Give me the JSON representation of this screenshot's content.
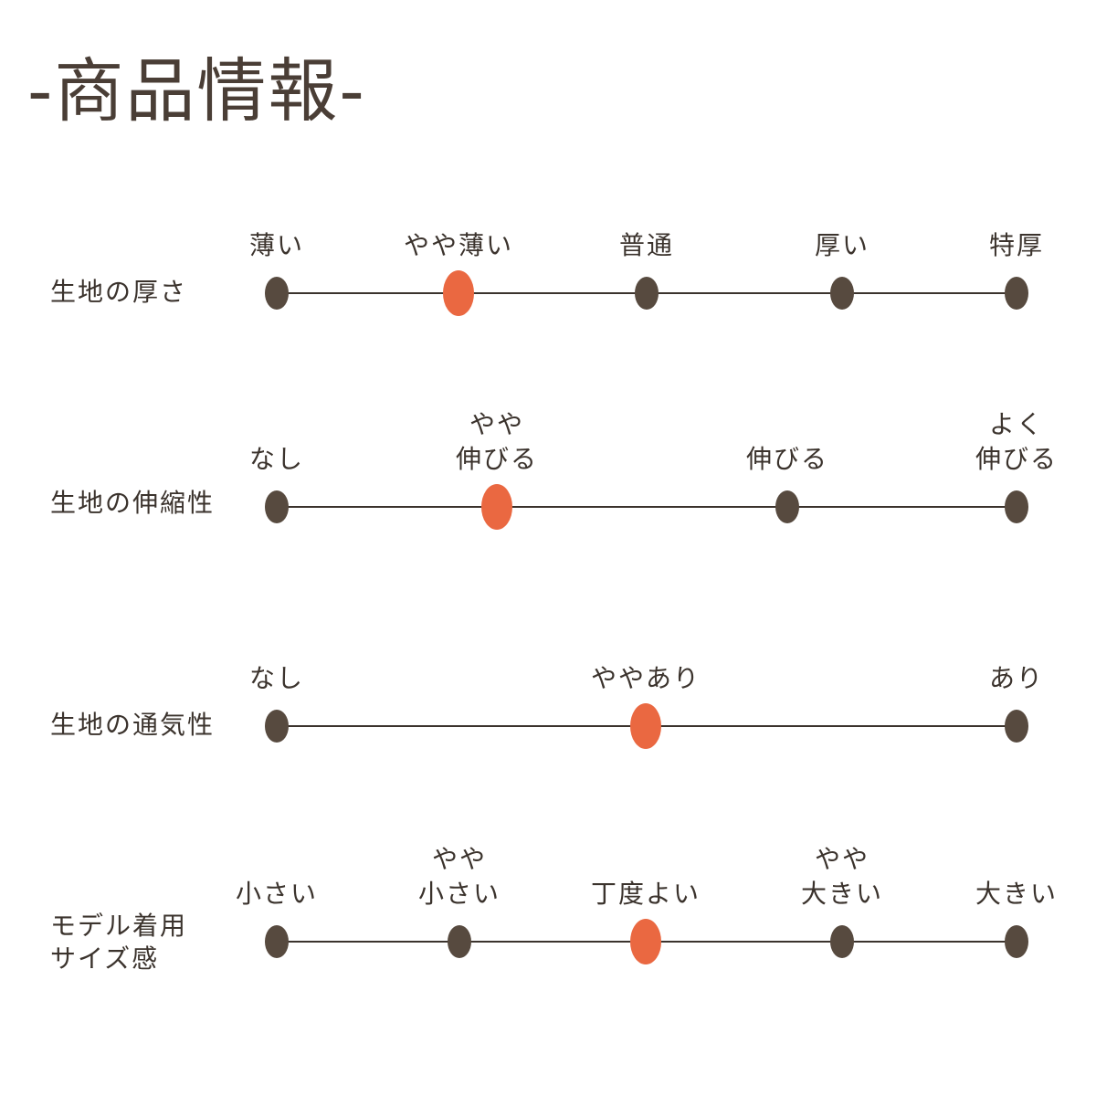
{
  "title": "-商品情報-",
  "colors": {
    "dot": "#574a3f",
    "active_dot": "#ea6841",
    "text": "#3b332d"
  },
  "rows": [
    {
      "label_lines": [
        "生地の厚さ"
      ],
      "options": [
        {
          "lines": [
            "薄い"
          ],
          "active": false
        },
        {
          "lines": [
            "やや薄い"
          ],
          "active": true
        },
        {
          "lines": [
            "普通"
          ],
          "active": false
        },
        {
          "lines": [
            "厚い"
          ],
          "active": false
        },
        {
          "lines": [
            "特厚"
          ],
          "active": false
        }
      ]
    },
    {
      "label_lines": [
        "生地の伸縮性"
      ],
      "options": [
        {
          "lines": [
            "なし"
          ],
          "active": false
        },
        {
          "lines": [
            "やや",
            "伸びる"
          ],
          "active": true
        },
        {
          "lines": [
            "伸びる"
          ],
          "active": false
        },
        {
          "lines": [
            "よく",
            "伸びる"
          ],
          "active": false
        }
      ]
    },
    {
      "label_lines": [
        "生地の通気性"
      ],
      "options": [
        {
          "lines": [
            "なし"
          ],
          "active": false
        },
        {
          "lines": [
            "ややあり"
          ],
          "active": true
        },
        {
          "lines": [
            "あり"
          ],
          "active": false
        }
      ]
    },
    {
      "label_lines": [
        "モデル着用",
        "サイズ感"
      ],
      "options": [
        {
          "lines": [
            "小さい"
          ],
          "active": false
        },
        {
          "lines": [
            "やや",
            "小さい"
          ],
          "active": false
        },
        {
          "lines": [
            "丁度よい"
          ],
          "active": true
        },
        {
          "lines": [
            "やや",
            "大きい"
          ],
          "active": false
        },
        {
          "lines": [
            "大きい"
          ],
          "active": false
        }
      ]
    }
  ]
}
